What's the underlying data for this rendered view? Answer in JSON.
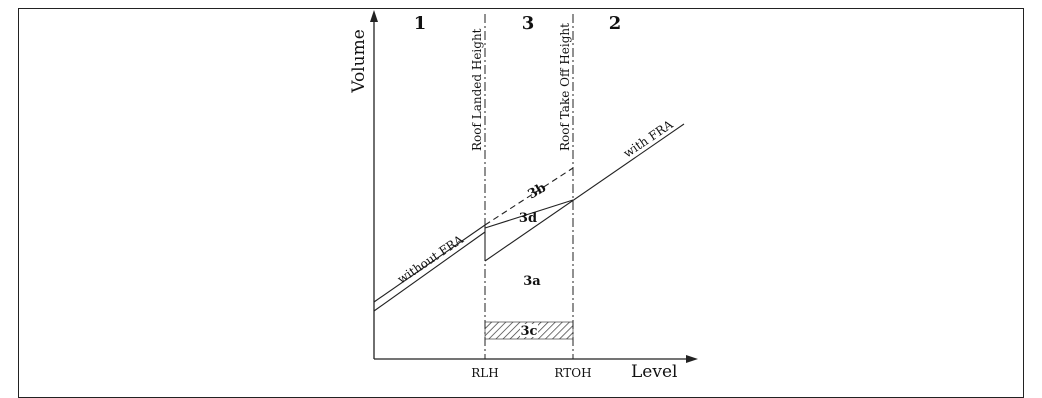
{
  "regions": {
    "r1": "1",
    "r2": "2",
    "r3": "3"
  },
  "axes": {
    "y_label": "Volume",
    "x_label": "Level"
  },
  "ticks": {
    "rlh": "RLH",
    "rtoh": "RTOH"
  },
  "verticals": {
    "roof_landed": "Roof Landed Height",
    "roof_takeoff": "Roof Take Off Height"
  },
  "lines": {
    "without_fra": "without FRA",
    "with_fra": "with FRA"
  },
  "areas": {
    "a3a": "3a",
    "a3b": "3b",
    "a3c": "3c",
    "a3d": "3d"
  }
}
